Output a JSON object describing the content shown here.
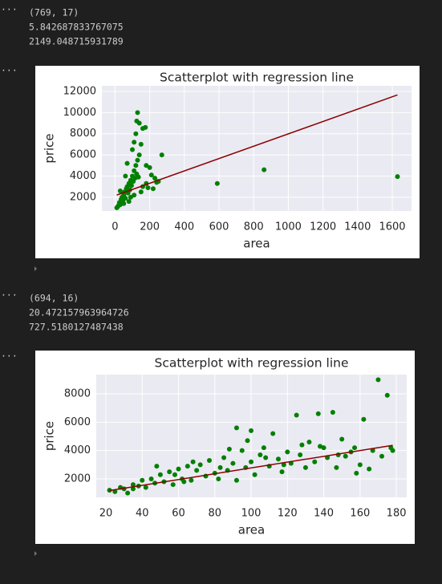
{
  "outputs": [
    {
      "prompt": "···",
      "lines": [
        "(769, 17)",
        "5.842687833767075",
        "2149.048715931789"
      ]
    },
    {
      "prompt": "···"
    },
    {
      "prompt": "···",
      "lines": [
        "(694, 16)",
        "20.472157963964726",
        "727.5180127487438"
      ]
    },
    {
      "prompt": "···"
    }
  ],
  "chart_data": [
    {
      "type": "scatter",
      "title": "Scatterplot with regression line",
      "xlabel": "area",
      "ylabel": "price",
      "xlim": [
        -76,
        1711
      ],
      "ylim": [
        700,
        12530
      ],
      "xticks": [
        0,
        200,
        400,
        600,
        800,
        1000,
        1200,
        1400,
        1600
      ],
      "yticks": [
        2000,
        4000,
        6000,
        8000,
        10000,
        12000
      ],
      "grid": true,
      "series": [
        {
          "color": "#008000",
          "x": [
            20,
            25,
            30,
            35,
            40,
            45,
            50,
            55,
            60,
            65,
            70,
            75,
            80,
            85,
            90,
            95,
            100,
            105,
            110,
            115,
            120,
            125,
            130,
            135,
            140,
            100,
            110,
            120,
            125,
            140,
            130,
            160,
            175,
            150,
            180,
            200,
            210,
            230,
            250,
            270,
            60,
            70,
            90,
            50,
            30,
            15,
            160,
            190,
            240,
            150,
            590,
            860,
            1630,
            10,
            80,
            110,
            180,
            220
          ],
          "values": [
            1200,
            1500,
            1300,
            1800,
            2000,
            1600,
            2200,
            2500,
            1900,
            2800,
            3000,
            2400,
            3300,
            2700,
            3600,
            3100,
            4000,
            3500,
            4500,
            3800,
            5000,
            4200,
            5500,
            3900,
            6000,
            6500,
            7200,
            8000,
            9200,
            9000,
            10000,
            8500,
            8600,
            7000,
            5000,
            4800,
            4100,
            3800,
            3500,
            6000,
            4000,
            5200,
            2000,
            1400,
            2600,
            1100,
            3000,
            2900,
            3400,
            2500,
            3300,
            4600,
            3950,
            1000,
            1600,
            2200,
            3300,
            2800
          ]
        }
      ],
      "regression_line": {
        "color": "#8b0000",
        "x": [
          10,
          1630
        ],
        "values": [
          2207.5,
          11672.6
        ]
      }
    },
    {
      "type": "scatter",
      "title": "Scatterplot with regression line",
      "xlabel": "area",
      "ylabel": "price",
      "xlim": [
        14.7,
        185.7
      ],
      "ylim": [
        698,
        9358
      ],
      "xticks": [
        20,
        40,
        60,
        80,
        100,
        120,
        140,
        160,
        180
      ],
      "yticks": [
        2000,
        4000,
        6000,
        8000
      ],
      "grid": true,
      "series": [
        {
          "color": "#008000",
          "x": [
            22,
            25,
            28,
            30,
            32,
            35,
            38,
            40,
            42,
            45,
            47,
            50,
            52,
            55,
            57,
            60,
            62,
            65,
            67,
            70,
            72,
            75,
            77,
            80,
            82,
            85,
            87,
            90,
            92,
            95,
            97,
            100,
            100,
            102,
            105,
            107,
            110,
            112,
            115,
            117,
            120,
            122,
            125,
            127,
            130,
            132,
            135,
            137,
            140,
            142,
            145,
            147,
            150,
            152,
            155,
            157,
            160,
            162,
            165,
            167,
            170,
            172,
            175,
            177,
            178,
            88,
            92,
            98,
            68,
            58,
            48,
            35,
            63,
            83,
            108,
            118,
            128,
            138,
            148,
            158
          ],
          "values": [
            1200,
            1100,
            1400,
            1300,
            1000,
            1600,
            1500,
            1900,
            1400,
            2000,
            1700,
            2300,
            1800,
            2500,
            1600,
            2700,
            2000,
            2900,
            1900,
            2600,
            3000,
            2200,
            3300,
            2400,
            2000,
            3500,
            2600,
            3100,
            1900,
            4000,
            2800,
            5400,
            3200,
            2300,
            3700,
            4200,
            2900,
            5200,
            3400,
            2500,
            3900,
            3100,
            6500,
            3700,
            2800,
            4600,
            3200,
            6600,
            4200,
            3500,
            6700,
            2800,
            4800,
            3600,
            3900,
            4200,
            3000,
            6200,
            2700,
            4000,
            9000,
            3600,
            7900,
            4200,
            4000,
            4100,
            5600,
            4700,
            3200,
            2300,
            2900,
            1300,
            1800,
            2800,
            3500,
            3000,
            4400,
            4300,
            3700,
            2400
          ]
        }
      ],
      "regression_line": {
        "color": "#8b0000",
        "x": [
          22,
          178
        ],
        "values": [
          1177.9,
          4371.5
        ]
      }
    }
  ]
}
